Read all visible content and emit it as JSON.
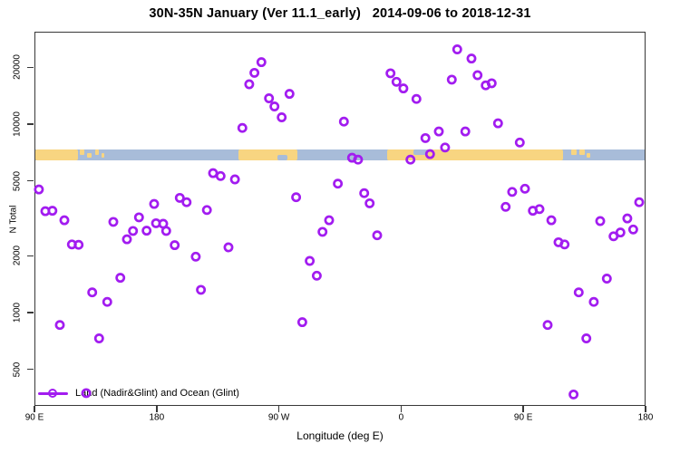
{
  "title": "30N-35N January (Ver 11.1_early)   2014-09-06 to 2018-12-31",
  "legend": {
    "label": "Land (Nadir&Glint) and Ocean (Glint)",
    "symbol": "line-with-open-circle"
  },
  "colors": {
    "point": "#A21CF0",
    "ocean": "#A8BCD9",
    "land": "#F8D581",
    "axis": "#383838",
    "text": "#000000"
  },
  "map_band": {
    "top_value": 7400,
    "bottom_value": 6480,
    "land_segments": [
      {
        "from_deg": 0,
        "to_deg": 31.5
      },
      {
        "from_deg": 150,
        "to_deg": 193.5
      },
      {
        "from_deg": 259.5,
        "to_deg": 390
      }
    ],
    "islands": [
      {
        "from_deg": 32.5,
        "to_deg": 36,
        "pos": "top"
      },
      {
        "from_deg": 38,
        "to_deg": 41.5,
        "pos": "mid"
      },
      {
        "from_deg": 44,
        "to_deg": 47,
        "pos": "top"
      },
      {
        "from_deg": 49,
        "to_deg": 51,
        "pos": "mid"
      },
      {
        "from_deg": 395.5,
        "to_deg": 399.5,
        "pos": "top"
      },
      {
        "from_deg": 401.5,
        "to_deg": 405.5,
        "pos": "top"
      },
      {
        "from_deg": 407,
        "to_deg": 409.5,
        "pos": "mid"
      }
    ],
    "ocean_notches": [
      {
        "from_deg": 178.5,
        "to_deg": 186.5,
        "pos": "bottom"
      },
      {
        "from_deg": 279,
        "to_deg": 290,
        "pos": "top"
      }
    ]
  },
  "chart_data": {
    "type": "scatter",
    "title": "30N-35N January (Ver 11.1_early)   2014-09-06 to 2018-12-31",
    "xlabel": "Longitude (deg E)",
    "ylabel": "N Total",
    "y_scale": "log",
    "xlim": [
      0,
      450
    ],
    "ylim": [
      320,
      30900
    ],
    "x_ticks": [
      {
        "deg": 0,
        "label": "90 E"
      },
      {
        "deg": 90,
        "label": "180"
      },
      {
        "deg": 180,
        "label": "90 W"
      },
      {
        "deg": 270,
        "label": "0"
      },
      {
        "deg": 360,
        "label": "90 E"
      },
      {
        "deg": 450,
        "label": "180"
      }
    ],
    "y_ticks": [
      {
        "value": 20000,
        "label": "20000"
      },
      {
        "value": 10000,
        "label": "10000"
      },
      {
        "value": 5000,
        "label": "5000"
      },
      {
        "value": 2000,
        "label": "2000"
      },
      {
        "value": 1000,
        "label": "1000"
      },
      {
        "value": 500,
        "label": "500"
      }
    ],
    "series": [
      {
        "name": "Land (Nadir&Glint) and Ocean (Glint)",
        "marker": "open-circle",
        "points_deg_n": [
          [
            3.3,
            4500
          ],
          [
            8.0,
            3450
          ],
          [
            13.2,
            3470
          ],
          [
            22.0,
            3090
          ],
          [
            58.1,
            3030
          ],
          [
            77.0,
            3200
          ],
          [
            88.1,
            3770
          ],
          [
            107.0,
            4060
          ],
          [
            112.0,
            3850
          ],
          [
            127.0,
            3500
          ],
          [
            131.5,
            5490
          ],
          [
            137.1,
            5300
          ],
          [
            147.6,
            5090
          ],
          [
            167.1,
            21300
          ],
          [
            162.0,
            18700
          ],
          [
            158.2,
            16270
          ],
          [
            172.7,
            13700
          ],
          [
            176.7,
            12400
          ],
          [
            187.8,
            14470
          ],
          [
            182.1,
            10860
          ],
          [
            153.1,
            9540
          ],
          [
            227.9,
            10310
          ],
          [
            262.2,
            18600
          ],
          [
            266.6,
            16760
          ],
          [
            271.7,
            15460
          ],
          [
            281.3,
            13590
          ],
          [
            287.9,
            8430
          ],
          [
            297.8,
            9140
          ],
          [
            291.3,
            6930
          ],
          [
            233.9,
            6630
          ],
          [
            238.3,
            6480
          ],
          [
            276.9,
            6480
          ],
          [
            223.4,
            4830
          ],
          [
            192.7,
            4090
          ],
          [
            242.8,
            4300
          ],
          [
            246.8,
            3800
          ],
          [
            217.0,
            3090
          ],
          [
            311.3,
            24900
          ],
          [
            321.8,
            22260
          ],
          [
            307.3,
            17200
          ],
          [
            326.3,
            18170
          ],
          [
            332.3,
            16050
          ],
          [
            336.7,
            16470
          ],
          [
            341.4,
            10100
          ],
          [
            317.3,
            9140
          ],
          [
            302.4,
            7510
          ],
          [
            357.4,
            7980
          ],
          [
            351.8,
            4370
          ],
          [
            361.2,
            4540
          ],
          [
            347.0,
            3640
          ],
          [
            367.0,
            3470
          ],
          [
            371.9,
            3540
          ],
          [
            380.6,
            3090
          ],
          [
            416.6,
            3060
          ],
          [
            436.6,
            3160
          ],
          [
            445.3,
            3850
          ],
          [
            27.6,
            2300
          ],
          [
            32.5,
            2290
          ],
          [
            68.1,
            2450
          ],
          [
            72.6,
            2710
          ],
          [
            82.6,
            2720
          ],
          [
            89.5,
            2980
          ],
          [
            94.8,
            2960
          ],
          [
            97.0,
            2710
          ],
          [
            103.3,
            2280
          ],
          [
            118.8,
            1980
          ],
          [
            142.9,
            2220
          ],
          [
            63.2,
            1530
          ],
          [
            42.5,
            1280
          ],
          [
            53.6,
            1140
          ],
          [
            122.6,
            1320
          ],
          [
            18.7,
            860
          ],
          [
            47.6,
            730
          ],
          [
            38.1,
            374
          ],
          [
            212.1,
            2680
          ],
          [
            252.4,
            2570
          ],
          [
            202.7,
            1880
          ],
          [
            207.9,
            1570
          ],
          [
            197.2,
            890
          ],
          [
            431.5,
            2660
          ],
          [
            426.4,
            2540
          ],
          [
            440.9,
            2760
          ],
          [
            385.9,
            2360
          ],
          [
            390.4,
            2300
          ],
          [
            421.5,
            1515
          ],
          [
            400.8,
            1280
          ],
          [
            411.9,
            1140
          ],
          [
            377.9,
            860
          ],
          [
            406.4,
            730
          ],
          [
            397.0,
            368
          ]
        ]
      }
    ]
  }
}
